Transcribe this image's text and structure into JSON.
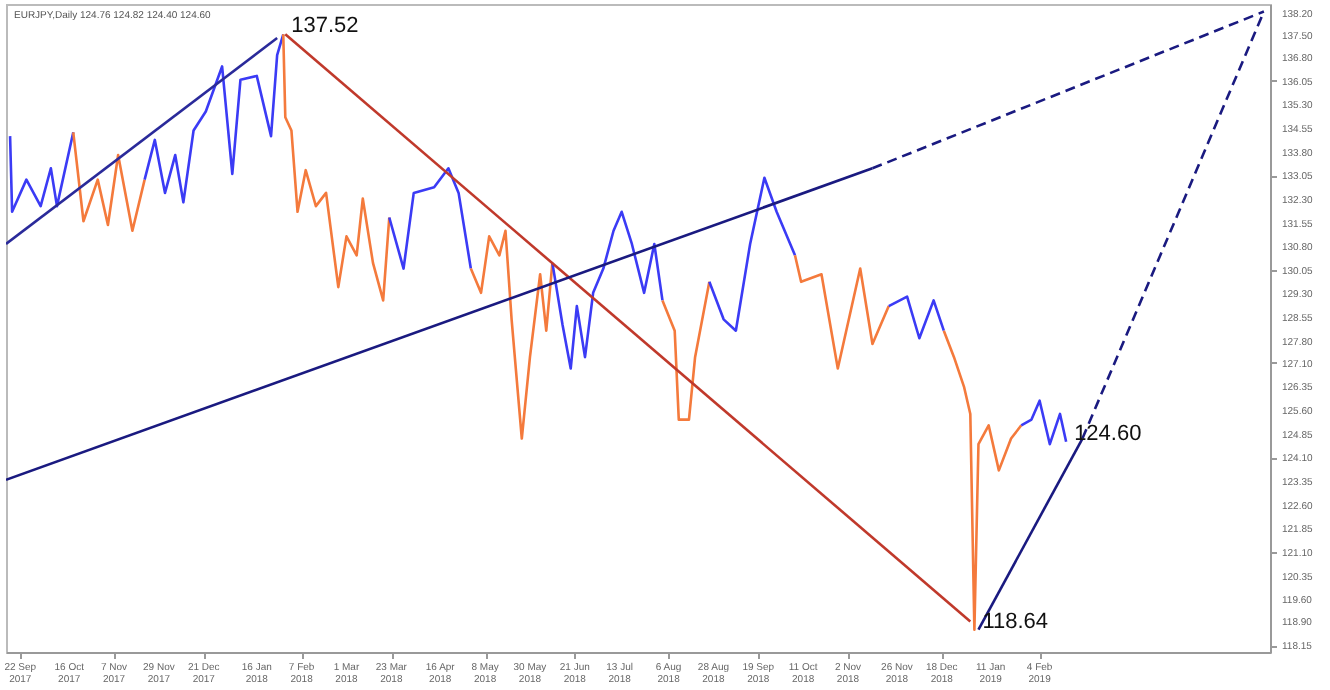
{
  "chart_data": {
    "type": "line",
    "series": [
      {
        "color": "#3b3bf5",
        "x": [
          "2017-09-17",
          "2017-09-18",
          "2017-09-25",
          "2017-10-02",
          "2017-10-07",
          "2017-10-10",
          "2017-10-18"
        ],
        "values": [
          134.29,
          131.89,
          132.91,
          132.07,
          133.27,
          132.07,
          134.41
        ]
      },
      {
        "color": "#f47a3c",
        "x": [
          "2017-10-18",
          "2017-10-23",
          "2017-10-30",
          "2017-11-04",
          "2017-11-09",
          "2017-11-16",
          "2017-11-22"
        ],
        "values": [
          134.41,
          131.59,
          132.91,
          131.47,
          133.69,
          131.29,
          132.91
        ]
      },
      {
        "color": "#3b3bf5",
        "x": [
          "2017-11-22",
          "2017-11-27",
          "2017-12-02",
          "2017-12-07",
          "2017-12-11",
          "2017-12-16",
          "2017-12-22",
          "2017-12-30",
          "2018-01-04",
          "2018-01-08",
          "2018-01-16",
          "2018-01-23",
          "2018-01-26",
          "2018-01-29"
        ],
        "values": [
          132.91,
          134.17,
          132.49,
          133.69,
          132.19,
          134.47,
          135.07,
          136.5,
          133.09,
          136.08,
          136.2,
          134.29,
          136.86,
          137.52
        ]
      },
      {
        "color": "#f47a3c",
        "x": [
          "2018-01-29",
          "2018-01-30",
          "2018-02-02",
          "2018-02-05",
          "2018-02-09",
          "2018-02-14",
          "2018-02-19",
          "2018-02-25",
          "2018-03-01",
          "2018-03-06",
          "2018-03-09",
          "2018-03-14",
          "2018-03-19",
          "2018-03-22"
        ],
        "values": [
          137.52,
          134.89,
          134.47,
          131.89,
          133.21,
          132.07,
          132.49,
          129.5,
          131.11,
          130.51,
          132.31,
          130.27,
          129.08,
          131.71
        ]
      },
      {
        "color": "#3b3bf5",
        "x": [
          "2018-03-22",
          "2018-03-29",
          "2018-04-03",
          "2018-04-13",
          "2018-04-20",
          "2018-04-25",
          "2018-05-01"
        ],
        "values": [
          131.71,
          130.09,
          132.49,
          132.67,
          133.27,
          132.49,
          130.09
        ]
      },
      {
        "color": "#f47a3c",
        "x": [
          "2018-05-01",
          "2018-05-06",
          "2018-05-10",
          "2018-05-15",
          "2018-05-18",
          "2018-05-21",
          "2018-05-26",
          "2018-05-30",
          "2018-06-04",
          "2018-06-07",
          "2018-06-10"
        ],
        "values": [
          130.09,
          129.32,
          131.11,
          130.51,
          131.29,
          128.48,
          124.7,
          127.28,
          129.91,
          128.12,
          130.27
        ]
      },
      {
        "color": "#3b3bf5",
        "x": [
          "2018-06-10",
          "2018-06-15",
          "2018-06-19",
          "2018-06-22",
          "2018-06-26",
          "2018-06-30",
          "2018-07-05",
          "2018-07-10",
          "2018-07-14",
          "2018-07-19",
          "2018-07-25",
          "2018-07-30",
          "2018-08-03"
        ],
        "values": [
          130.27,
          128.3,
          126.92,
          128.9,
          127.28,
          129.32,
          130.09,
          131.29,
          131.89,
          130.87,
          129.32,
          130.87,
          129.08
        ]
      },
      {
        "color": "#f47a3c",
        "x": [
          "2018-08-03",
          "2018-08-09",
          "2018-08-11",
          "2018-08-16",
          "2018-08-19",
          "2018-08-26"
        ],
        "values": [
          129.08,
          128.12,
          125.3,
          125.3,
          127.28,
          129.67
        ]
      },
      {
        "color": "#3b3bf5",
        "x": [
          "2018-08-26",
          "2018-09-02",
          "2018-09-08",
          "2018-09-15",
          "2018-09-22",
          "2018-09-28",
          "2018-10-07"
        ],
        "values": [
          129.67,
          128.48,
          128.12,
          130.87,
          132.97,
          131.89,
          130.51
        ]
      },
      {
        "color": "#f47a3c",
        "x": [
          "2018-10-07",
          "2018-10-10",
          "2018-10-20",
          "2018-10-28",
          "2018-11-08",
          "2018-11-14",
          "2018-11-22"
        ],
        "values": [
          130.51,
          129.67,
          129.91,
          126.92,
          130.09,
          127.7,
          128.9
        ]
      },
      {
        "color": "#3b3bf5",
        "x": [
          "2018-11-22",
          "2018-12-01",
          "2018-12-07",
          "2018-12-14",
          "2018-12-19"
        ],
        "values": [
          128.9,
          129.2,
          127.88,
          129.08,
          128.12
        ]
      },
      {
        "color": "#f47a3c",
        "x": [
          "2018-12-19",
          "2018-12-24",
          "2018-12-29",
          "2019-01-01",
          "2019-01-03",
          "2019-01-05",
          "2019-01-10",
          "2019-01-15",
          "2019-01-21",
          "2019-01-26"
        ],
        "values": [
          128.12,
          127.28,
          126.32,
          125.48,
          118.64,
          124.52,
          125.12,
          123.69,
          124.7,
          125.12
        ]
      },
      {
        "color": "#3b3bf5",
        "x": [
          "2019-01-26",
          "2019-01-31",
          "2019-02-04",
          "2019-02-09",
          "2019-02-14",
          "2019-02-17"
        ],
        "values": [
          125.12,
          125.3,
          125.9,
          124.52,
          125.48,
          124.6
        ]
      },
      {
        "type": "line",
        "color": "#2a2a9a",
        "line_style": "solid",
        "x": [
          "2017-09-15",
          "2018-01-26"
        ],
        "values": [
          130.87,
          137.4
        ]
      },
      {
        "type": "line",
        "color": "#c0392b",
        "line_style": "solid",
        "x": [
          "2018-01-30",
          "2019-01-01"
        ],
        "values": [
          137.52,
          118.9
        ]
      },
      {
        "type": "line",
        "color": "#1a1a80",
        "line_style": "solid",
        "x": [
          "2017-09-15",
          "2018-11-14"
        ],
        "values": [
          123.39,
          133.27
        ]
      },
      {
        "type": "line",
        "color": "#1a1a80",
        "line_style": "dashed",
        "x": [
          "2018-11-14",
          "2019-05-25"
        ],
        "values": [
          133.27,
          138.24
        ]
      },
      {
        "type": "line",
        "color": "#1a1a80",
        "line_style": "solid",
        "x": [
          "2019-01-05",
          "2019-02-25"
        ],
        "values": [
          118.64,
          124.7
        ]
      },
      {
        "type": "line",
        "color": "#1a1a80",
        "line_style": "dashed",
        "x": [
          "2019-02-25",
          "2019-05-25"
        ],
        "values": [
          124.7,
          138.24
        ]
      }
    ],
    "xlim": [
      "2017-09-15",
      "2019-05-28"
    ],
    "ylim": [
      117.93,
      138.48
    ],
    "xticks": [
      {
        "value": "2017-09-22",
        "label": "22 Sep 2017"
      },
      {
        "value": "2017-10-16",
        "label": "16 Oct 2017"
      },
      {
        "value": "2017-11-07",
        "label": "7 Nov 2017"
      },
      {
        "value": "2017-11-29",
        "label": "29 Nov 2017"
      },
      {
        "value": "2017-12-21",
        "label": "21 Dec 2017"
      },
      {
        "value": "2018-01-16",
        "label": "16 Jan 2018"
      },
      {
        "value": "2018-02-07",
        "label": "7 Feb 2018"
      },
      {
        "value": "2018-03-01",
        "label": "1 Mar 2018"
      },
      {
        "value": "2018-03-23",
        "label": "23 Mar 2018"
      },
      {
        "value": "2018-04-16",
        "label": "16 Apr 2018"
      },
      {
        "value": "2018-05-08",
        "label": "8 May 2018"
      },
      {
        "value": "2018-05-30",
        "label": "30 May 2018"
      },
      {
        "value": "2018-06-21",
        "label": "21 Jun 2018"
      },
      {
        "value": "2018-07-13",
        "label": "13 Jul 2018"
      },
      {
        "value": "2018-08-06",
        "label": "6 Aug 2018"
      },
      {
        "value": "2018-08-28",
        "label": "28 Aug 2018"
      },
      {
        "value": "2018-09-19",
        "label": "19 Sep 2018"
      },
      {
        "value": "2018-10-11",
        "label": "11 Oct 2018"
      },
      {
        "value": "2018-11-02",
        "label": "2 Nov 2018"
      },
      {
        "value": "2018-11-26",
        "label": "26 Nov 2018"
      },
      {
        "value": "2018-12-18",
        "label": "18 Dec 2018"
      },
      {
        "value": "2019-01-11",
        "label": "11 Jan 2019"
      },
      {
        "value": "2019-02-04",
        "label": "4 Feb 2019"
      }
    ],
    "yticks": [
      {
        "value": 138.2,
        "label": "138.20"
      },
      {
        "value": 137.5,
        "label": "137.50"
      },
      {
        "value": 136.8,
        "label": "136.80"
      },
      {
        "value": 136.05,
        "label": "136.05"
      },
      {
        "value": 135.3,
        "label": "135.30"
      },
      {
        "value": 134.55,
        "label": "134.55"
      },
      {
        "value": 133.8,
        "label": "133.80"
      },
      {
        "value": 133.05,
        "label": "133.05"
      },
      {
        "value": 132.3,
        "label": "132.30"
      },
      {
        "value": 131.55,
        "label": "131.55"
      },
      {
        "value": 130.8,
        "label": "130.80"
      },
      {
        "value": 130.05,
        "label": "130.05"
      },
      {
        "value": 129.3,
        "label": "129.30"
      },
      {
        "value": 128.55,
        "label": "128.55"
      },
      {
        "value": 127.8,
        "label": "127.80"
      },
      {
        "value": 127.1,
        "label": "127.10"
      },
      {
        "value": 126.35,
        "label": "126.35"
      },
      {
        "value": 125.6,
        "label": "125.60"
      },
      {
        "value": 124.85,
        "label": "124.85"
      },
      {
        "value": 124.1,
        "label": "124.10"
      },
      {
        "value": 123.35,
        "label": "123.35"
      },
      {
        "value": 122.6,
        "label": "122.60"
      },
      {
        "value": 121.85,
        "label": "121.85"
      },
      {
        "value": 121.1,
        "label": "121.10"
      },
      {
        "value": 120.35,
        "label": "120.35"
      },
      {
        "value": 119.6,
        "label": "119.60"
      },
      {
        "value": 118.9,
        "label": "118.90"
      },
      {
        "value": 118.15,
        "label": "118.15"
      }
    ],
    "annotations": [
      "EURJPY,Daily  124.76 124.82 124.40 124.60",
      {
        "text": "137.52",
        "x": "2018-01-29",
        "y": 137.52
      },
      {
        "text": "118.64",
        "x": "2019-01-03",
        "y": 118.64
      },
      {
        "text": "124.60",
        "x": "2019-02-17",
        "y": 124.6
      }
    ]
  }
}
